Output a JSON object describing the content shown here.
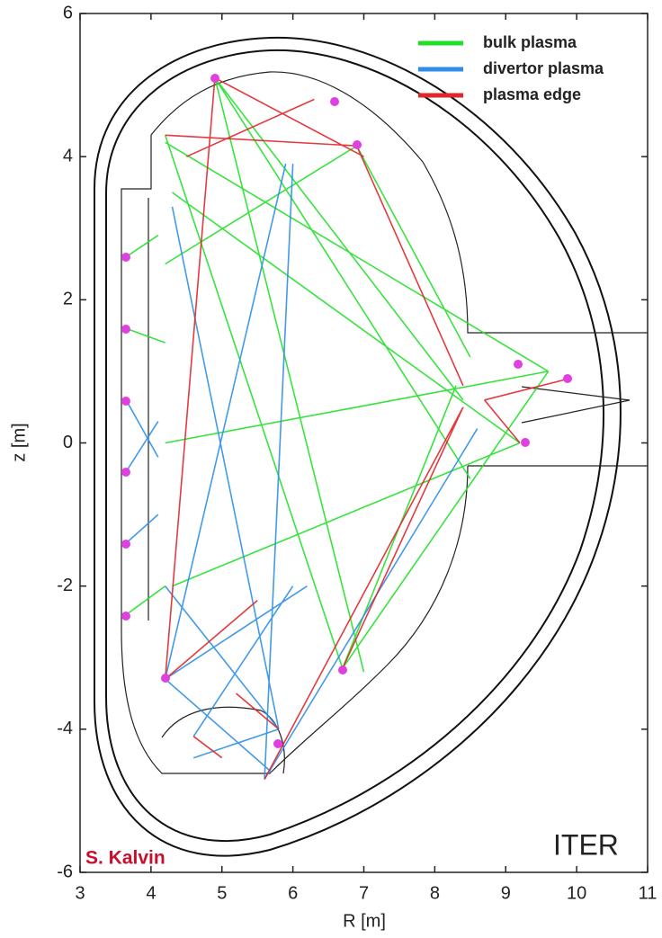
{
  "chart_data": {
    "type": "line",
    "xlabel": "R [m]",
    "ylabel": "z [m]",
    "xlim": [
      3,
      11
    ],
    "ylim": [
      -6,
      6
    ],
    "xticks": [
      3,
      4,
      5,
      6,
      7,
      8,
      9,
      10,
      11
    ],
    "yticks": [
      -6,
      -4,
      -2,
      0,
      2,
      4,
      6
    ],
    "legend": "upper right",
    "annotations": [
      "S. Kalvin",
      "ITER"
    ],
    "series": [
      {
        "name": "bulk plasma",
        "color": "#22e02a",
        "x": [
          4.9,
          8.4,
          null,
          4.9,
          8.5,
          null,
          4.9,
          7.0,
          null,
          6.9,
          4.2,
          null,
          6.9,
          8.5,
          null,
          9.6,
          4.2,
          null,
          9.6,
          4.2,
          null,
          9.6,
          6.7,
          null,
          9.2,
          4.3,
          null,
          9.2,
          4.3,
          null,
          3.65,
          4.1,
          null,
          3.65,
          4.2,
          null,
          3.65,
          4.2,
          null,
          6.7,
          8.3,
          null,
          6.7,
          4.2
        ],
        "values": [
          5.1,
          0.6,
          null,
          5.1,
          -0.5,
          null,
          5.1,
          -3.2,
          null,
          4.15,
          2.5,
          null,
          4.15,
          1.2,
          null,
          1.0,
          4.2,
          null,
          1.0,
          0.0,
          null,
          1.0,
          -3.15,
          null,
          0.0,
          3.5,
          null,
          0.0,
          -2.0,
          null,
          2.6,
          2.9,
          null,
          1.6,
          1.4,
          null,
          -2.4,
          -2.0,
          null,
          -3.15,
          0.8,
          null,
          -3.15,
          4.3
        ]
      },
      {
        "name": "divertor plasma",
        "color": "#2f8fe6",
        "x": [
          4.2,
          6.2,
          null,
          4.2,
          5.7,
          null,
          5.8,
          4.2,
          null,
          5.8,
          4.6,
          null,
          4.6,
          6.0,
          null,
          3.65,
          4.1,
          null,
          3.65,
          4.1,
          null,
          3.65,
          4.1,
          null,
          5.6,
          6.0,
          null,
          5.6,
          8.6,
          null,
          4.2,
          5.9,
          null,
          5.8,
          4.3
        ],
        "values": [
          -3.3,
          -2.0,
          null,
          -3.3,
          -4.6,
          null,
          -4.0,
          -2.0,
          null,
          -4.0,
          -4.4,
          null,
          -4.1,
          -2.0,
          null,
          0.6,
          -0.2,
          null,
          -0.4,
          0.3,
          null,
          -1.4,
          -1.0,
          null,
          -4.7,
          3.9,
          null,
          -4.7,
          0.2,
          null,
          -3.3,
          3.9,
          null,
          -4.0,
          3.3
        ]
      },
      {
        "name": "plasma edge",
        "color": "#e0262a",
        "x": [
          4.9,
          4.2,
          null,
          4.9,
          7.0,
          null,
          4.2,
          6.9,
          null,
          6.3,
          4.5,
          null,
          6.9,
          8.4,
          null,
          8.7,
          9.9,
          null,
          8.7,
          9.2,
          null,
          8.4,
          6.7,
          null,
          8.4,
          5.6,
          null,
          4.2,
          5.5,
          null,
          4.6,
          5.0,
          null,
          5.8,
          5.2
        ],
        "values": [
          5.1,
          -3.3,
          null,
          5.1,
          4.0,
          null,
          4.3,
          4.15,
          null,
          4.8,
          4.0,
          null,
          4.15,
          0.8,
          null,
          0.6,
          0.9,
          null,
          0.6,
          0.0,
          null,
          0.5,
          -3.15,
          null,
          0.5,
          -4.7,
          null,
          -3.3,
          -2.2,
          null,
          -4.1,
          -4.4,
          null,
          -4.0,
          -3.5
        ]
      }
    ]
  }
}
